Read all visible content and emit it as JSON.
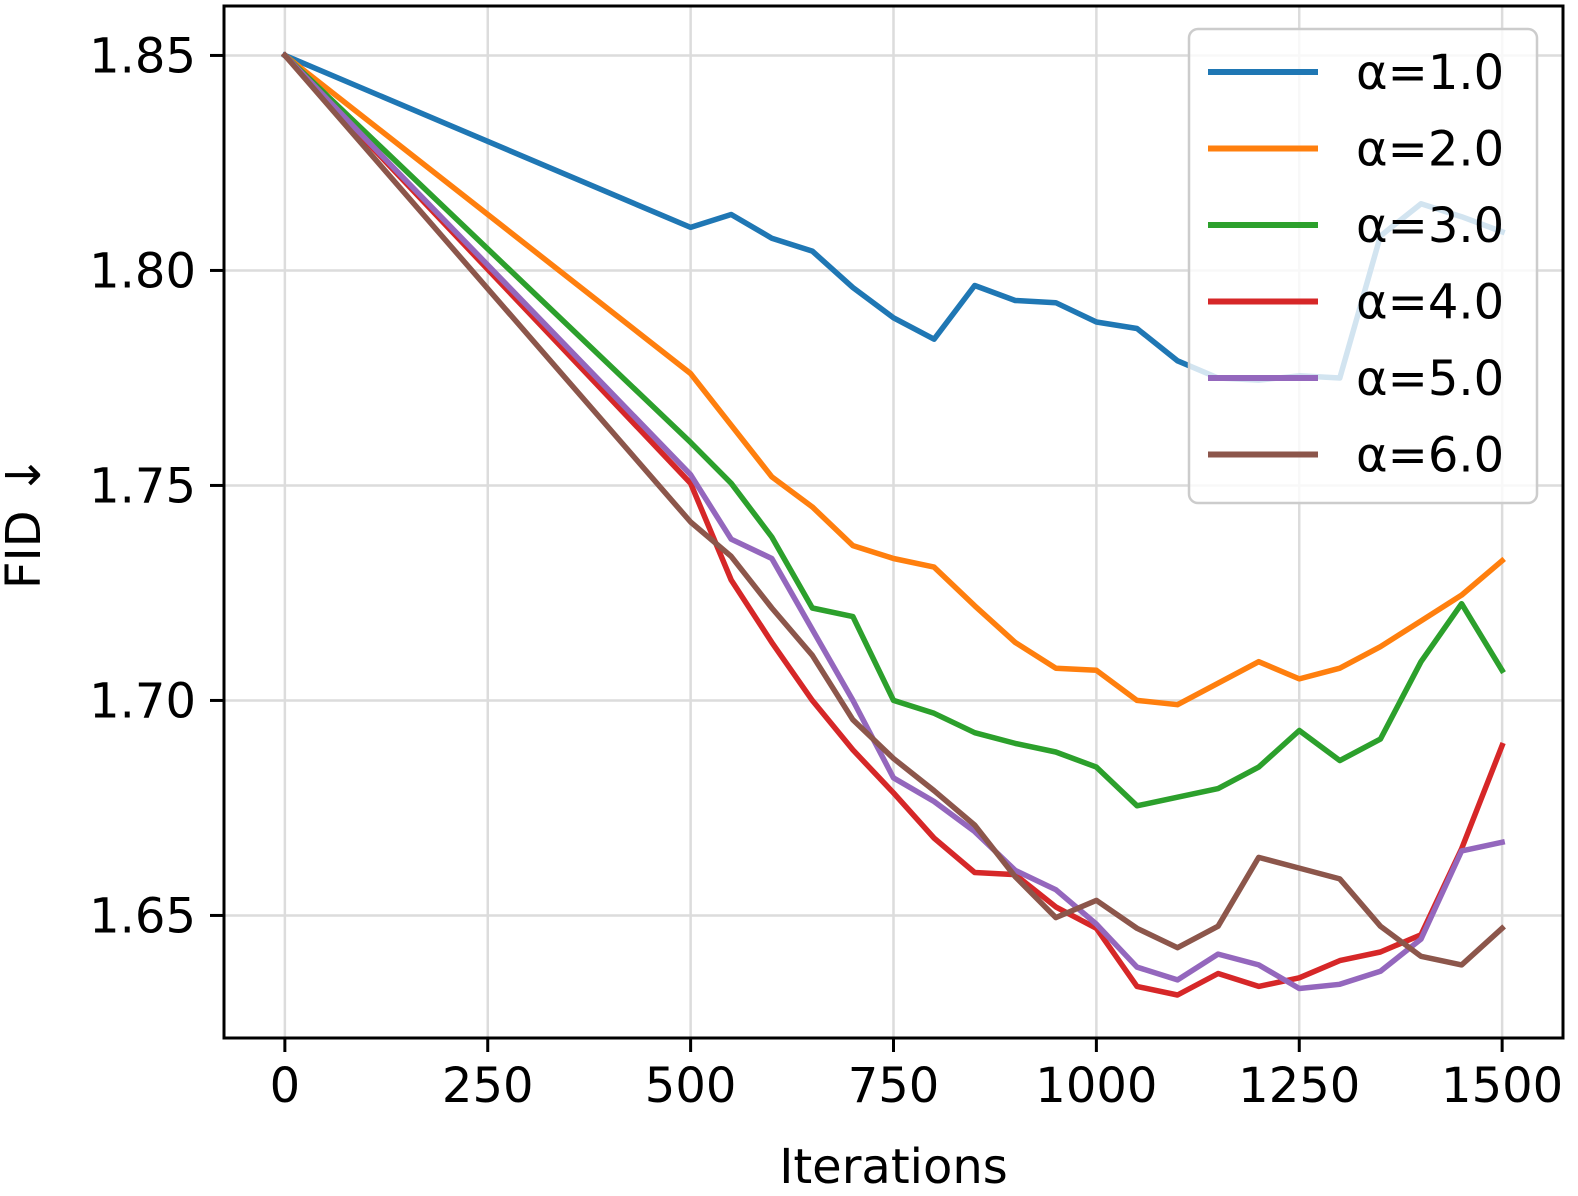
{
  "chart_data": {
    "type": "line",
    "xlabel": "Iterations",
    "ylabel": "FID ↓",
    "xlim": [
      -75,
      1575
    ],
    "ylim": [
      1.6215,
      1.8615
    ],
    "xticks": [
      0,
      250,
      500,
      750,
      1000,
      1250,
      1500
    ],
    "xtick_labels": [
      "0",
      "250",
      "500",
      "750",
      "1000",
      "1250",
      "1500"
    ],
    "yticks": [
      1.65,
      1.7,
      1.75,
      1.8,
      1.85
    ],
    "ytick_labels": [
      "1.65",
      "1.70",
      "1.75",
      "1.80",
      "1.85"
    ],
    "grid": true,
    "legend_position": "top-right",
    "x": [
      0,
      500,
      550,
      600,
      650,
      700,
      750,
      800,
      850,
      900,
      950,
      1000,
      1050,
      1100,
      1150,
      1200,
      1250,
      1300,
      1350,
      1400,
      1450,
      1500
    ],
    "series": [
      {
        "name": "α=1.0",
        "color": "#1f77b4",
        "values": [
          1.85,
          1.81,
          1.813,
          1.8075,
          1.8045,
          1.796,
          1.789,
          1.784,
          1.7965,
          1.793,
          1.7925,
          1.788,
          1.7865,
          1.779,
          1.775,
          1.7745,
          1.7755,
          1.775,
          1.808,
          1.8155,
          1.8125,
          1.809
        ]
      },
      {
        "name": "α=2.0",
        "color": "#ff7f0e",
        "values": [
          1.85,
          1.776,
          1.764,
          1.752,
          1.745,
          1.736,
          1.733,
          1.731,
          1.722,
          1.7135,
          1.7075,
          1.707,
          1.7,
          1.699,
          1.704,
          1.709,
          1.705,
          1.7075,
          1.7125,
          1.7185,
          1.7245,
          1.7325
        ]
      },
      {
        "name": "α=3.0",
        "color": "#2ca02c",
        "values": [
          1.85,
          1.76,
          1.7505,
          1.738,
          1.7215,
          1.7195,
          1.7,
          1.697,
          1.6925,
          1.69,
          1.688,
          1.6845,
          1.6755,
          1.6775,
          1.6795,
          1.6845,
          1.693,
          1.686,
          1.691,
          1.709,
          1.7225,
          1.707
        ]
      },
      {
        "name": "α=4.0",
        "color": "#d62728",
        "values": [
          1.85,
          1.7505,
          1.728,
          1.7135,
          1.7,
          1.6885,
          1.6785,
          1.668,
          1.66,
          1.6595,
          1.652,
          1.647,
          1.6335,
          1.6315,
          1.6365,
          1.6335,
          1.6355,
          1.6395,
          1.6415,
          1.6455,
          1.6655,
          1.6895
        ]
      },
      {
        "name": "α=5.0",
        "color": "#9467bd",
        "values": [
          1.85,
          1.7525,
          1.7375,
          1.733,
          1.7165,
          1.7,
          1.682,
          1.6765,
          1.6695,
          1.6605,
          1.656,
          1.648,
          1.638,
          1.635,
          1.641,
          1.6385,
          1.633,
          1.634,
          1.637,
          1.6445,
          1.665,
          1.667
        ]
      },
      {
        "name": "α=6.0",
        "color": "#8c564b",
        "values": [
          1.85,
          1.7415,
          1.7335,
          1.7215,
          1.7105,
          1.6955,
          1.6865,
          1.679,
          1.671,
          1.659,
          1.6495,
          1.6535,
          1.647,
          1.6425,
          1.6475,
          1.6635,
          1.661,
          1.6585,
          1.6475,
          1.6405,
          1.6385,
          1.647
        ]
      }
    ]
  }
}
